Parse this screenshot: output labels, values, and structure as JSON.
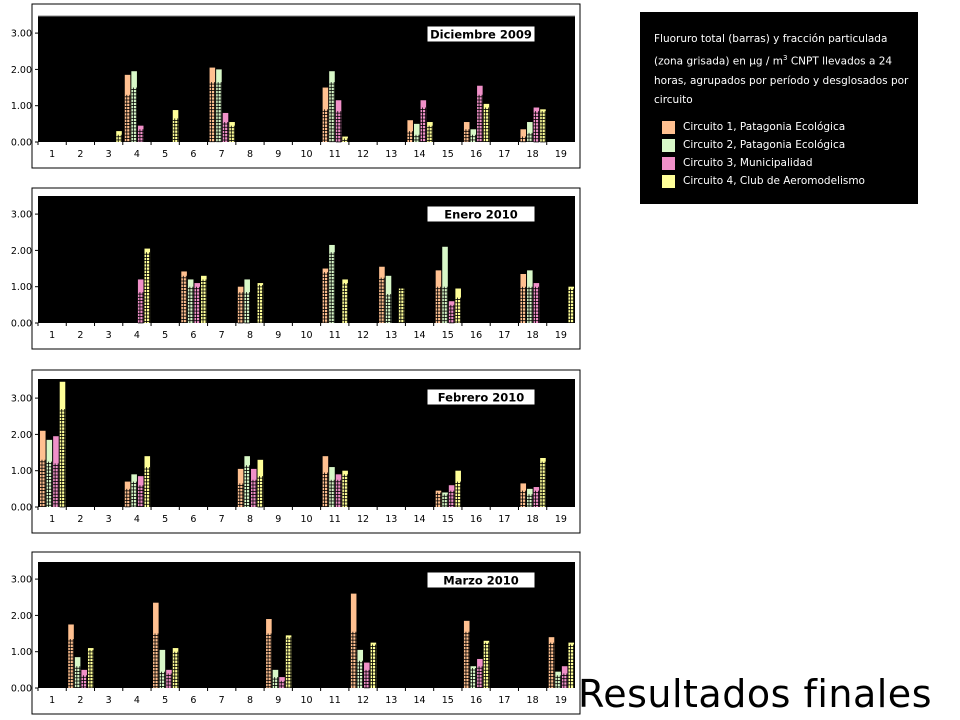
{
  "legend": {
    "title_parts": [
      "Fluoruro total (barras) y fracción particulada (zona grisada) en µg / m",
      "3",
      " CNPT llevados a 24 horas, agrupados por período y desglosados por circuito"
    ],
    "items": [
      {
        "label": "Circuito 1, Patagonia Ecológica",
        "color": "#FFC090"
      },
      {
        "label": "Circuito 2, Patagonia Ecológica",
        "color": "#D8F8C8"
      },
      {
        "label": "Circuito 3, Municipalidad",
        "color": "#F090C8"
      },
      {
        "label": "Circuito 4, Club de Aeromodelismo",
        "color": "#FFFF98"
      }
    ]
  },
  "footer": "Resultados finales",
  "chart_data": [
    {
      "type": "bar",
      "title": "Diciembre 2009",
      "categories": [
        "1",
        "2",
        "3",
        "4",
        "5",
        "6",
        "7",
        "8",
        "9",
        "10",
        "11",
        "12",
        "13",
        "14",
        "15",
        "16",
        "17",
        "18",
        "19"
      ],
      "y_ticks": [
        "0.00",
        "1.00",
        "2.00",
        "3.00"
      ],
      "ylim": [
        0,
        3.3
      ],
      "series": [
        {
          "name": "Circuito 1, Patagonia Ecológica",
          "values": [
            null,
            null,
            null,
            1.85,
            null,
            null,
            2.05,
            null,
            null,
            null,
            1.5,
            null,
            null,
            0.6,
            null,
            0.55,
            null,
            0.35,
            null
          ],
          "particulate": [
            null,
            null,
            null,
            1.3,
            null,
            null,
            1.65,
            null,
            null,
            null,
            0.9,
            null,
            null,
            0.3,
            null,
            0.35,
            null,
            0.15,
            null
          ]
        },
        {
          "name": "Circuito 2, Patagonia Ecológica",
          "values": [
            null,
            null,
            null,
            1.95,
            null,
            null,
            2.0,
            null,
            null,
            null,
            1.95,
            null,
            null,
            0.5,
            null,
            0.35,
            null,
            0.55,
            null
          ],
          "particulate": [
            null,
            null,
            null,
            1.5,
            null,
            null,
            1.65,
            null,
            null,
            null,
            1.65,
            null,
            null,
            0.2,
            null,
            0.2,
            null,
            0.25,
            null
          ]
        },
        {
          "name": "Circuito 3, Municipalidad",
          "values": [
            null,
            null,
            null,
            0.45,
            null,
            null,
            0.8,
            null,
            null,
            null,
            1.15,
            null,
            null,
            1.15,
            null,
            1.55,
            null,
            0.95,
            null
          ],
          "particulate": [
            null,
            null,
            null,
            0.35,
            null,
            null,
            0.55,
            null,
            null,
            null,
            0.85,
            null,
            null,
            0.95,
            null,
            1.3,
            null,
            0.85,
            null
          ]
        },
        {
          "name": "Circuito 4, Club de Aeromodelismo",
          "values": [
            null,
            null,
            0.3,
            null,
            0.88,
            null,
            0.55,
            null,
            null,
            null,
            0.15,
            null,
            null,
            0.55,
            null,
            1.05,
            null,
            0.9,
            null
          ],
          "particulate": [
            null,
            null,
            0.2,
            null,
            0.65,
            null,
            0.45,
            null,
            null,
            null,
            0.1,
            null,
            null,
            0.45,
            null,
            0.95,
            null,
            0.85,
            null
          ]
        }
      ]
    },
    {
      "type": "bar",
      "title": "Enero 2010",
      "categories": [
        "1",
        "2",
        "3",
        "4",
        "5",
        "6",
        "7",
        "8",
        "9",
        "10",
        "11",
        "12",
        "13",
        "14",
        "15",
        "16",
        "17",
        "18",
        "19"
      ],
      "y_ticks": [
        "0.00",
        "1.00",
        "2.00",
        "3.00"
      ],
      "ylim": [
        0,
        3.3
      ],
      "series": [
        {
          "name": "Circuito 1, Patagonia Ecológica",
          "values": [
            null,
            null,
            null,
            null,
            null,
            1.42,
            null,
            1.0,
            null,
            null,
            1.5,
            null,
            1.55,
            null,
            1.45,
            null,
            null,
            1.35,
            null
          ],
          "particulate": [
            null,
            null,
            null,
            null,
            null,
            1.3,
            null,
            0.85,
            null,
            null,
            1.4,
            null,
            1.25,
            null,
            1.0,
            null,
            null,
            1.0,
            null
          ]
        },
        {
          "name": "Circuito 2, Patagonia Ecológica",
          "values": [
            null,
            null,
            null,
            null,
            null,
            1.2,
            null,
            1.2,
            null,
            null,
            2.15,
            null,
            1.3,
            null,
            2.1,
            null,
            null,
            1.45,
            null
          ],
          "particulate": [
            null,
            null,
            null,
            null,
            null,
            1.0,
            null,
            0.85,
            null,
            null,
            1.95,
            null,
            0.8,
            null,
            1.0,
            null,
            null,
            1.0,
            null
          ]
        },
        {
          "name": "Circuito 3, Municipalidad",
          "values": [
            null,
            null,
            null,
            1.2,
            null,
            1.1,
            null,
            null,
            null,
            null,
            null,
            null,
            null,
            null,
            0.6,
            null,
            null,
            1.1,
            null
          ],
          "particulate": [
            null,
            null,
            null,
            0.85,
            null,
            1.0,
            null,
            null,
            null,
            null,
            null,
            null,
            null,
            null,
            0.5,
            null,
            null,
            1.0,
            null
          ]
        },
        {
          "name": "Circuito 4, Club de Aeromodelismo",
          "values": [
            null,
            null,
            null,
            2.05,
            null,
            1.3,
            null,
            1.1,
            null,
            null,
            1.2,
            null,
            0.95,
            null,
            0.95,
            null,
            null,
            null,
            1.0
          ],
          "particulate": [
            null,
            null,
            null,
            1.95,
            null,
            1.2,
            null,
            1.05,
            null,
            null,
            1.1,
            null,
            0.95,
            null,
            0.7,
            null,
            null,
            null,
            0.95
          ]
        }
      ]
    },
    {
      "type": "bar",
      "title": "Febrero 2010",
      "categories": [
        "1",
        "2",
        "3",
        "4",
        "5",
        "6",
        "7",
        "8",
        "9",
        "10",
        "11",
        "12",
        "13",
        "14",
        "15",
        "16",
        "17",
        "18",
        "19"
      ],
      "y_ticks": [
        "0.00",
        "1.00",
        "2.00",
        "3.00"
      ],
      "ylim": [
        0,
        3.5
      ],
      "series": [
        {
          "name": "Circuito 1, Patagonia Ecológica",
          "values": [
            2.1,
            null,
            null,
            0.7,
            null,
            null,
            null,
            1.05,
            null,
            null,
            1.4,
            null,
            null,
            null,
            0.45,
            null,
            null,
            0.65,
            null
          ],
          "particulate": [
            1.3,
            null,
            null,
            0.5,
            null,
            null,
            null,
            0.65,
            null,
            null,
            0.95,
            null,
            null,
            null,
            0.4,
            null,
            null,
            0.45,
            null
          ]
        },
        {
          "name": "Circuito 2, Patagonia Ecológica",
          "values": [
            1.85,
            null,
            null,
            0.9,
            null,
            null,
            null,
            1.4,
            null,
            null,
            1.1,
            null,
            null,
            null,
            0.4,
            null,
            null,
            0.5,
            null
          ],
          "particulate": [
            1.25,
            null,
            null,
            0.7,
            null,
            null,
            null,
            1.15,
            null,
            null,
            0.75,
            null,
            null,
            null,
            0.35,
            null,
            null,
            0.35,
            null
          ]
        },
        {
          "name": "Circuito 3, Municipalidad",
          "values": [
            1.95,
            null,
            null,
            0.85,
            null,
            null,
            null,
            1.05,
            null,
            null,
            0.9,
            null,
            null,
            null,
            0.6,
            null,
            null,
            0.55,
            null
          ],
          "particulate": [
            1.2,
            null,
            null,
            0.6,
            null,
            null,
            null,
            0.75,
            null,
            null,
            0.75,
            null,
            null,
            null,
            0.45,
            null,
            null,
            0.45,
            null
          ]
        },
        {
          "name": "Circuito 4, Club de Aeromodelismo",
          "values": [
            3.45,
            null,
            null,
            1.4,
            null,
            null,
            null,
            1.3,
            null,
            null,
            1.0,
            null,
            null,
            null,
            1.0,
            null,
            null,
            1.35,
            null
          ],
          "particulate": [
            2.7,
            null,
            null,
            1.1,
            null,
            null,
            null,
            0.85,
            null,
            null,
            0.9,
            null,
            null,
            null,
            0.7,
            null,
            null,
            1.25,
            null
          ]
        }
      ]
    },
    {
      "type": "bar",
      "title": "Marzo 2010",
      "categories": [
        "1",
        "2",
        "3",
        "4",
        "5",
        "6",
        "7",
        "8",
        "9",
        "10",
        "11",
        "12",
        "13",
        "14",
        "15",
        "16",
        "17",
        "18",
        "19"
      ],
      "y_ticks": [
        "0.00",
        "1.00",
        "2.00",
        "3.00"
      ],
      "ylim": [
        0,
        3.3
      ],
      "series": [
        {
          "name": "Circuito 1, Patagonia Ecológica",
          "values": [
            null,
            1.75,
            null,
            null,
            2.35,
            null,
            null,
            null,
            1.9,
            null,
            null,
            2.6,
            null,
            null,
            null,
            1.85,
            null,
            null,
            1.4
          ],
          "particulate": [
            null,
            1.35,
            null,
            null,
            1.5,
            null,
            null,
            null,
            1.5,
            null,
            null,
            1.55,
            null,
            null,
            null,
            1.55,
            null,
            null,
            1.25
          ]
        },
        {
          "name": "Circuito 2, Patagonia Ecológica",
          "values": [
            null,
            0.85,
            null,
            null,
            1.05,
            null,
            null,
            null,
            0.5,
            null,
            null,
            1.05,
            null,
            null,
            null,
            0.6,
            null,
            null,
            0.45
          ],
          "particulate": [
            null,
            0.6,
            null,
            null,
            0.45,
            null,
            null,
            null,
            0.3,
            null,
            null,
            0.75,
            null,
            null,
            null,
            0.55,
            null,
            null,
            0.35
          ]
        },
        {
          "name": "Circuito 3, Municipalidad",
          "values": [
            null,
            0.5,
            null,
            null,
            0.5,
            null,
            null,
            null,
            0.3,
            null,
            null,
            0.7,
            null,
            null,
            null,
            0.8,
            null,
            null,
            0.6
          ],
          "particulate": [
            null,
            0.35,
            null,
            null,
            0.4,
            null,
            null,
            null,
            0.2,
            null,
            null,
            0.5,
            null,
            null,
            null,
            0.6,
            null,
            null,
            0.4
          ]
        },
        {
          "name": "Circuito 4, Club de Aeromodelismo",
          "values": [
            null,
            1.1,
            null,
            null,
            1.1,
            null,
            null,
            null,
            1.45,
            null,
            null,
            1.25,
            null,
            null,
            null,
            1.3,
            null,
            null,
            1.25
          ],
          "particulate": [
            null,
            1.05,
            null,
            null,
            1.0,
            null,
            null,
            null,
            1.4,
            null,
            null,
            1.2,
            null,
            null,
            null,
            1.25,
            null,
            null,
            1.2
          ]
        }
      ]
    }
  ]
}
